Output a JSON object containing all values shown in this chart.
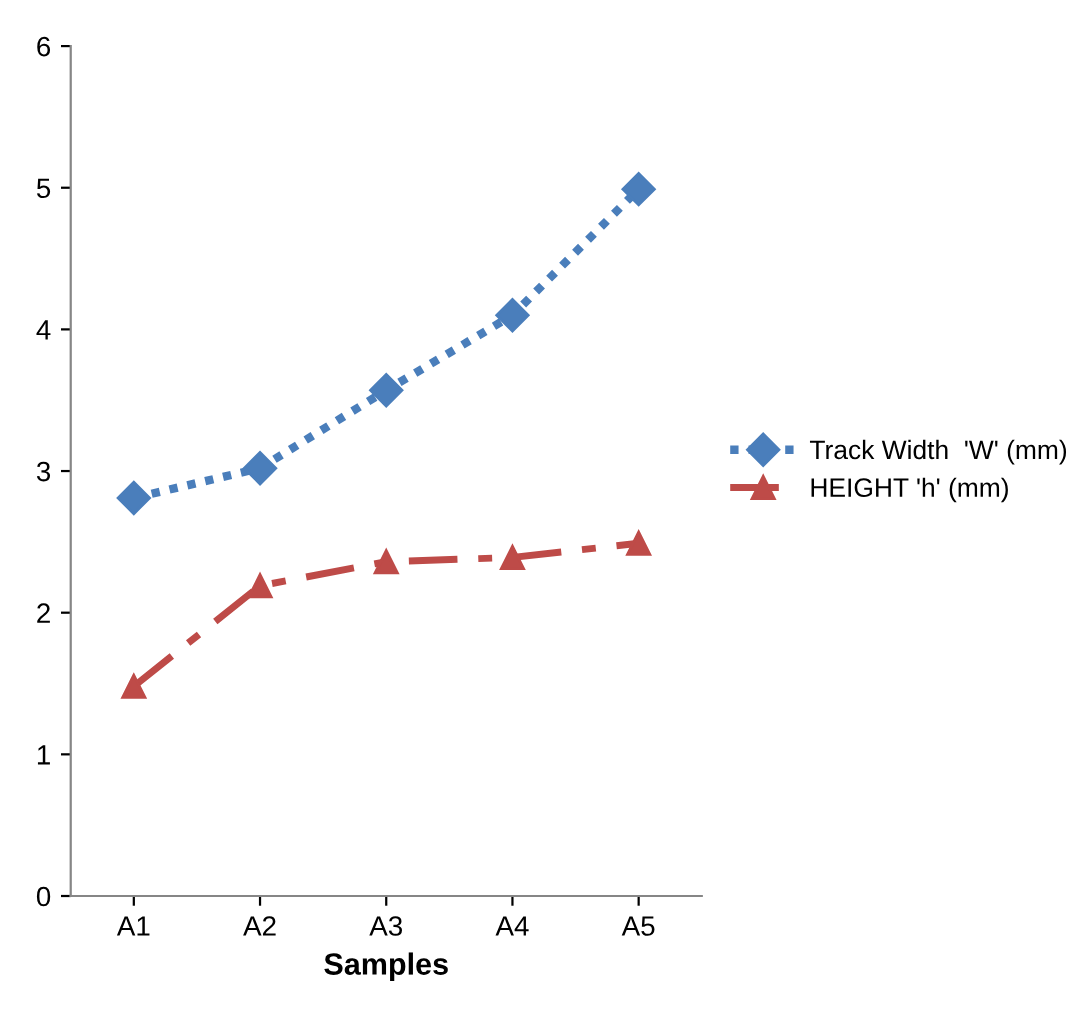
{
  "chart_data": {
    "type": "line",
    "xlabel": "Samples",
    "categories": [
      "A1",
      "A2",
      "A3",
      "A4",
      "A5"
    ],
    "ylim": [
      0,
      6
    ],
    "yticks": [
      0,
      1,
      2,
      3,
      4,
      5,
      6
    ],
    "grid": false,
    "legend": "right",
    "series": [
      {
        "name": "Track Width  'W' (mm)",
        "color": "#4a7ebb",
        "values": [
          2.81,
          3.02,
          3.57,
          4.1,
          4.99
        ],
        "marker": "diamond",
        "line_style": "dotted"
      },
      {
        "name": "HEIGHT 'h' (mm)",
        "color": "#be4b48",
        "values": [
          1.48,
          2.19,
          2.36,
          2.39,
          2.49
        ],
        "marker": "triangle",
        "line_style": "dashed"
      }
    ]
  }
}
